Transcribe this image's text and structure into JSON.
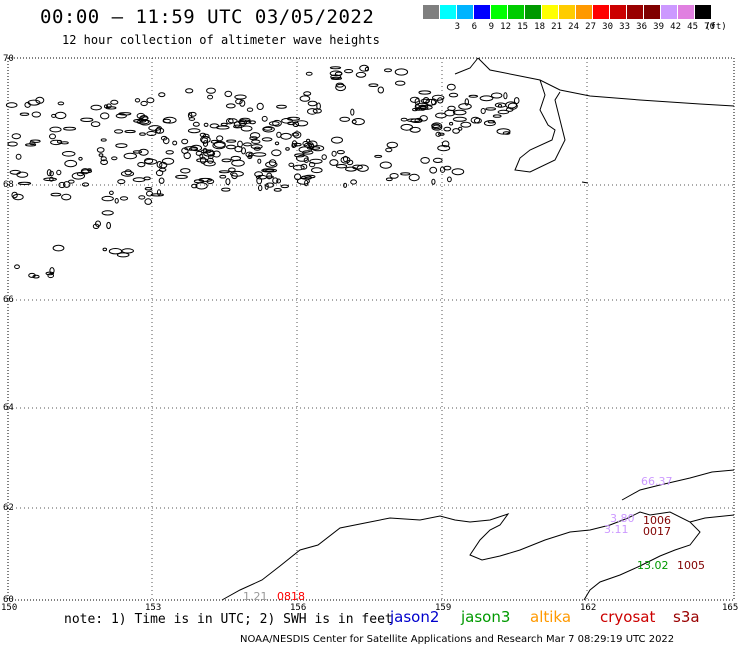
{
  "title": "00:00 – 11:59 UTC 03/05/2022",
  "subtitle": "12 hour collection of altimeter wave heights",
  "legend": {
    "unit": "(ft)",
    "bins": [
      {
        "label": "",
        "color": "#7f7f7f"
      },
      {
        "label": "3",
        "color": "#00ffff"
      },
      {
        "label": "6",
        "color": "#00b4ff"
      },
      {
        "label": "9",
        "color": "#0000ff"
      },
      {
        "label": "12",
        "color": "#00ff00"
      },
      {
        "label": "15",
        "color": "#00cc00"
      },
      {
        "label": "18",
        "color": "#009900"
      },
      {
        "label": "21",
        "color": "#ffff00"
      },
      {
        "label": "24",
        "color": "#ffcc00"
      },
      {
        "label": "27",
        "color": "#ff9900"
      },
      {
        "label": "30",
        "color": "#ff0000"
      },
      {
        "label": "33",
        "color": "#cc0000"
      },
      {
        "label": "36",
        "color": "#990000"
      },
      {
        "label": "39",
        "color": "#800000"
      },
      {
        "label": "42",
        "color": "#cc99ff"
      },
      {
        "label": "45",
        "color": "#e080e0"
      },
      {
        "label": "70",
        "color": "#000000"
      }
    ]
  },
  "axes": {
    "lat_labels": [
      "70",
      "68",
      "66",
      "64",
      "62",
      "60"
    ],
    "lon_labels": [
      "150",
      "153",
      "156",
      "159",
      "162",
      "165"
    ]
  },
  "tracks": [
    {
      "time": "0818",
      "color": "#ff0000",
      "value": "1.21",
      "value_color": "#999999"
    },
    {
      "time": "1006",
      "color": "#800000",
      "value": "3.80",
      "value_color": "#cc99ff"
    },
    {
      "time": "0017",
      "color": "#800000",
      "value": "3.11",
      "value_color": "#cc99ff"
    },
    {
      "time": "1005",
      "color": "#800000",
      "value": "13.02",
      "value_color": "#009900"
    },
    {
      "time": "",
      "color": "#cc99ff",
      "value": "66.37",
      "value_color": "#cc99ff"
    }
  ],
  "note": "note: 1) Time is in UTC; 2) SWH is in feet",
  "satellites": [
    {
      "name": "jason2",
      "color": "#0000cc"
    },
    {
      "name": "jason3",
      "color": "#009900"
    },
    {
      "name": "altika",
      "color": "#ff9900"
    },
    {
      "name": "cryosat",
      "color": "#cc0000"
    },
    {
      "name": "s3a",
      "color": "#990000"
    }
  ],
  "credit": "NOAA/NESDIS Center for Satellite Applications and Research   Mar  7 08:29:19 UTC 2022"
}
